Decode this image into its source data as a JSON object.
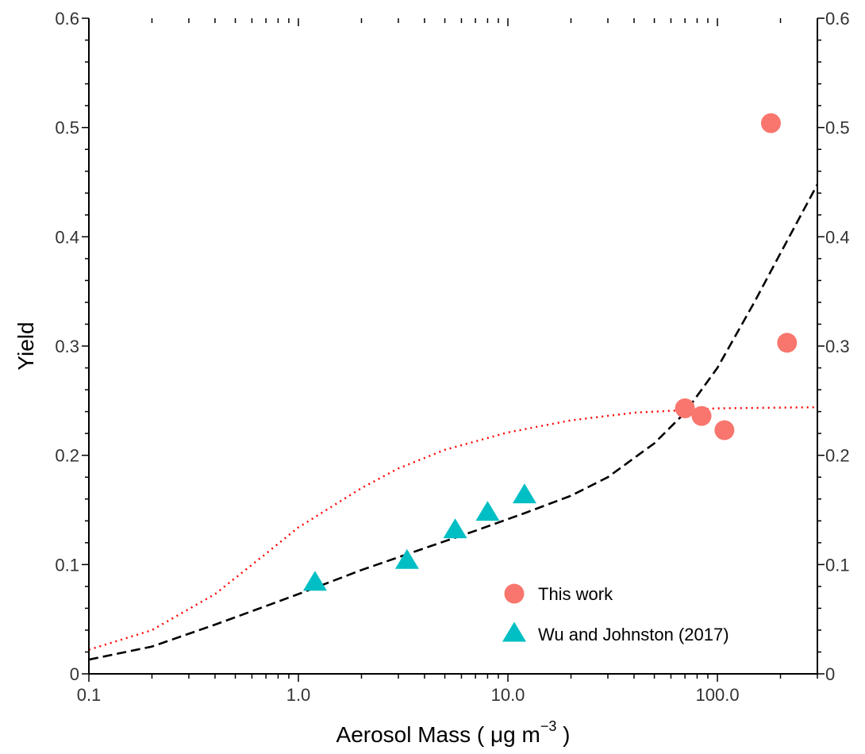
{
  "chart_data": {
    "type": "scatter",
    "xlabel": "Aerosol Mass ( μg  m",
    "xlabel_superscript": "−3",
    "xlabel_suffix": " )",
    "ylabel": "Yield",
    "x_scale": "log",
    "xlim": [
      0.1,
      300
    ],
    "ylim": [
      0,
      0.6
    ],
    "x_ticks": [
      0.1,
      1,
      10,
      100
    ],
    "x_tick_labels": [
      "0.1",
      "1.0",
      "10.0",
      "100.0"
    ],
    "y_ticks": [
      0,
      0.1,
      0.2,
      0.3,
      0.4,
      0.5,
      0.6
    ],
    "y_tick_labels": [
      "0",
      "0.1",
      "0.2",
      "0.3",
      "0.4",
      "0.5",
      "0.6"
    ],
    "right_axis_tick_labels": [
      "0",
      "0.1",
      "0.2",
      "0.3",
      "0.4",
      "0.5",
      "0.6"
    ],
    "grid": false,
    "legend_position": "bottom-right",
    "series": [
      {
        "name": "This work",
        "marker": "circle",
        "color": "#F8766D",
        "points": [
          {
            "x": 70,
            "y": 0.243
          },
          {
            "x": 84,
            "y": 0.236
          },
          {
            "x": 108,
            "y": 0.223
          },
          {
            "x": 180,
            "y": 0.504
          },
          {
            "x": 215,
            "y": 0.303
          }
        ]
      },
      {
        "name": "Wu and Johnston (2017)",
        "marker": "triangle",
        "color": "#00BFC4",
        "points": [
          {
            "x": 1.2,
            "y": 0.083
          },
          {
            "x": 3.3,
            "y": 0.103
          },
          {
            "x": 5.6,
            "y": 0.131
          },
          {
            "x": 8.0,
            "y": 0.147
          },
          {
            "x": 12.0,
            "y": 0.163
          }
        ]
      }
    ],
    "curves": [
      {
        "style": "dashed",
        "color": "#000000",
        "points": [
          {
            "x": 0.1,
            "y": 0.013
          },
          {
            "x": 0.2,
            "y": 0.025
          },
          {
            "x": 0.4,
            "y": 0.045
          },
          {
            "x": 0.7,
            "y": 0.062
          },
          {
            "x": 1.0,
            "y": 0.073
          },
          {
            "x": 2.0,
            "y": 0.095
          },
          {
            "x": 4.0,
            "y": 0.115
          },
          {
            "x": 7.0,
            "y": 0.131
          },
          {
            "x": 12.0,
            "y": 0.147
          },
          {
            "x": 20.0,
            "y": 0.163
          },
          {
            "x": 30.0,
            "y": 0.18
          },
          {
            "x": 50.0,
            "y": 0.211
          },
          {
            "x": 70.0,
            "y": 0.239
          },
          {
            "x": 100.0,
            "y": 0.28
          },
          {
            "x": 150.0,
            "y": 0.34
          },
          {
            "x": 200.0,
            "y": 0.385
          },
          {
            "x": 300.0,
            "y": 0.448
          }
        ]
      },
      {
        "style": "dotted",
        "color": "#ff0000",
        "points": [
          {
            "x": 0.1,
            "y": 0.022
          },
          {
            "x": 0.2,
            "y": 0.04
          },
          {
            "x": 0.4,
            "y": 0.073
          },
          {
            "x": 0.7,
            "y": 0.11
          },
          {
            "x": 1.0,
            "y": 0.134
          },
          {
            "x": 2.0,
            "y": 0.17
          },
          {
            "x": 3.0,
            "y": 0.188
          },
          {
            "x": 5.0,
            "y": 0.205
          },
          {
            "x": 10.0,
            "y": 0.221
          },
          {
            "x": 20.0,
            "y": 0.232
          },
          {
            "x": 40.0,
            "y": 0.239
          },
          {
            "x": 100.0,
            "y": 0.243
          },
          {
            "x": 300.0,
            "y": 0.244
          }
        ]
      }
    ]
  }
}
